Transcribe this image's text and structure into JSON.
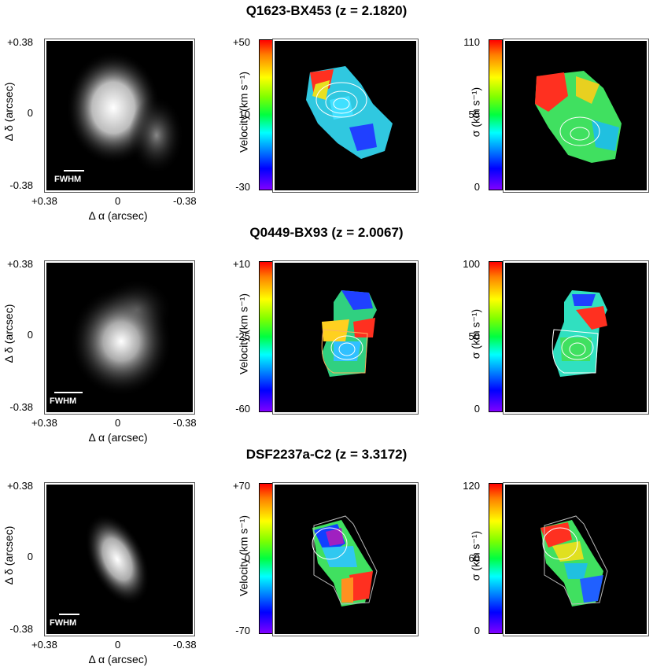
{
  "rows": [
    {
      "title": "Q1623-BX453 (z = 2.1820)",
      "ylabel": "Δ δ (arcsec)",
      "ytick_top": "+0.38",
      "ytick_mid": "0",
      "ytick_bot": "-0.38",
      "xtick_left": "+0.38",
      "xtick_mid": "0",
      "xtick_right": "-0.38",
      "xlabel": "Δ α (arcsec)",
      "fwhm": "FWHM",
      "vel_label": "Velocity (km s⁻¹)",
      "vel_top": "+50",
      "vel_mid": "10",
      "vel_bot": "-30",
      "sig_label": "σ (km s⁻¹)",
      "sig_top": "110",
      "sig_mid": "55",
      "sig_bot": "0"
    },
    {
      "title": "Q0449-BX93 (z = 2.0067)",
      "ylabel": "Δ δ (arcsec)",
      "ytick_top": "+0.38",
      "ytick_mid": "0",
      "ytick_bot": "-0.38",
      "xtick_left": "+0.38",
      "xtick_mid": "0",
      "xtick_right": "-0.38",
      "xlabel": "Δ α (arcsec)",
      "fwhm": "FWHM",
      "vel_label": "Velocity (km s⁻¹)",
      "vel_top": "+10",
      "vel_mid": "-25",
      "vel_bot": "-60",
      "sig_label": "σ (km s⁻¹)",
      "sig_top": "100",
      "sig_mid": "50",
      "sig_bot": "0"
    },
    {
      "title": "DSF2237a-C2 (z = 3.3172)",
      "ylabel": "Δ δ (arcsec)",
      "ytick_top": "+0.38",
      "ytick_mid": "0",
      "ytick_bot": "-0.38",
      "xtick_left": "+0.38",
      "xtick_mid": "0",
      "xtick_right": "-0.38",
      "xlabel": "Δ α (arcsec)",
      "fwhm": "FWHM",
      "vel_label": "Velocity (km s⁻¹)",
      "vel_top": "+70",
      "vel_mid": "0",
      "vel_bot": "-70",
      "sig_label": "σ (km s⁻¹)",
      "sig_top": "120",
      "sig_mid": "60",
      "sig_bot": "0"
    }
  ]
}
